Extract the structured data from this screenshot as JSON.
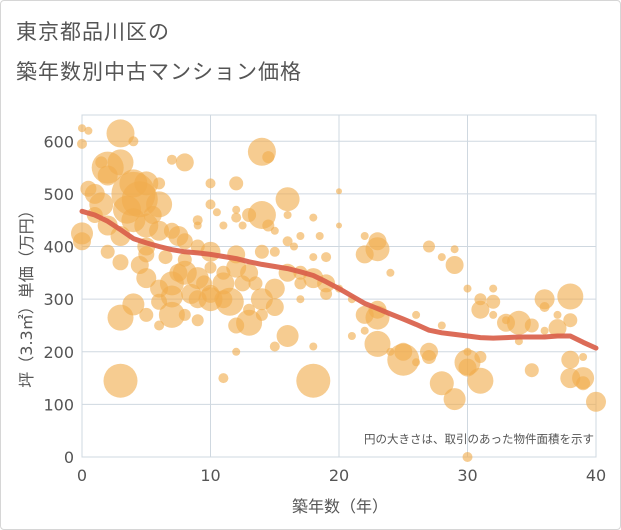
{
  "title_line1": "東京都品川区の",
  "title_line2": "築年数別中古マンション価格",
  "chart_data": {
    "type": "scatter",
    "xlabel": "築年数（年）",
    "ylabel": "坪（3.3㎡）単価（万円）",
    "xlim": [
      0,
      40
    ],
    "ylim": [
      0,
      650
    ],
    "xticks": [
      "0",
      "10",
      "20",
      "30",
      "40"
    ],
    "yticks": [
      "0",
      "100",
      "200",
      "300",
      "400",
      "500",
      "600"
    ],
    "grid": true,
    "note": "円の大きさは、取引のあった物件面積を示す",
    "colors": {
      "bubble": "#f0ad4e",
      "trend": "#d9604a"
    },
    "trend": {
      "x": [
        0,
        1,
        2,
        3,
        4,
        5,
        6,
        7,
        8,
        9,
        10,
        11,
        12,
        13,
        14,
        15,
        16,
        17,
        18,
        19,
        20,
        21,
        22,
        23,
        24,
        25,
        26,
        27,
        28,
        29,
        30,
        31,
        32,
        33,
        34,
        35,
        36,
        37,
        38,
        39,
        40
      ],
      "y": [
        467,
        460,
        448,
        432,
        415,
        407,
        400,
        394,
        390,
        388,
        385,
        381,
        377,
        371,
        366,
        362,
        358,
        352,
        345,
        333,
        320,
        306,
        292,
        282,
        272,
        262,
        252,
        241,
        236,
        233,
        230,
        227,
        226,
        227,
        228,
        228,
        228,
        230,
        230,
        218,
        207
      ]
    },
    "points": [
      [
        0,
        625,
        4
      ],
      [
        0,
        595,
        5
      ],
      [
        0.5,
        620,
        4
      ],
      [
        0,
        410,
        9
      ],
      [
        0,
        425,
        11
      ],
      [
        1,
        500,
        10
      ],
      [
        1.5,
        480,
        12
      ],
      [
        2,
        550,
        16
      ],
      [
        2,
        535,
        10
      ],
      [
        3,
        560,
        13
      ],
      [
        3,
        615,
        14
      ],
      [
        3.5,
        470,
        14
      ],
      [
        4,
        500,
        22
      ],
      [
        4,
        520,
        14
      ],
      [
        4.5,
        490,
        18
      ],
      [
        5,
        520,
        12
      ],
      [
        4,
        450,
        12
      ],
      [
        3,
        420,
        10
      ],
      [
        5,
        400,
        9
      ],
      [
        6,
        480,
        13
      ],
      [
        5.5,
        460,
        9
      ],
      [
        7,
        430,
        8
      ],
      [
        7.5,
        420,
        10
      ],
      [
        8,
        560,
        9
      ],
      [
        7,
        565,
        5
      ],
      [
        9,
        450,
        5
      ],
      [
        10,
        480,
        5
      ],
      [
        10.5,
        465,
        4
      ],
      [
        11,
        440,
        4
      ],
      [
        12,
        455,
        5
      ],
      [
        12.5,
        440,
        4
      ],
      [
        13,
        460,
        7
      ],
      [
        14,
        580,
        14
      ],
      [
        14.5,
        570,
        6
      ],
      [
        14,
        460,
        14
      ],
      [
        14.5,
        440,
        6
      ],
      [
        15,
        430,
        4
      ],
      [
        16,
        490,
        12
      ],
      [
        16,
        460,
        4
      ],
      [
        17,
        420,
        4
      ],
      [
        18,
        455,
        4
      ],
      [
        20,
        505,
        3
      ],
      [
        20,
        440,
        3
      ],
      [
        22,
        420,
        4
      ],
      [
        23,
        410,
        9
      ],
      [
        23,
        395,
        12
      ],
      [
        22,
        385,
        9
      ],
      [
        24,
        350,
        4
      ],
      [
        27,
        400,
        6
      ],
      [
        29,
        395,
        4
      ],
      [
        29,
        365,
        9
      ],
      [
        30,
        320,
        4
      ],
      [
        28,
        380,
        4
      ],
      [
        31,
        300,
        6
      ],
      [
        31,
        280,
        9
      ],
      [
        32,
        320,
        4
      ],
      [
        32,
        295,
        7
      ],
      [
        33,
        255,
        9
      ],
      [
        34,
        255,
        12
      ],
      [
        35,
        250,
        7
      ],
      [
        35,
        165,
        7
      ],
      [
        36,
        300,
        10
      ],
      [
        36,
        285,
        5
      ],
      [
        37,
        245,
        9
      ],
      [
        38,
        305,
        13
      ],
      [
        38,
        260,
        7
      ],
      [
        38,
        185,
        9
      ],
      [
        38,
        150,
        10
      ],
      [
        39,
        150,
        11
      ],
      [
        39,
        140,
        7
      ],
      [
        40,
        105,
        10
      ],
      [
        30,
        180,
        13
      ],
      [
        30,
        170,
        9
      ],
      [
        31,
        145,
        13
      ],
      [
        31,
        190,
        6
      ],
      [
        29,
        110,
        11
      ],
      [
        28,
        140,
        12
      ],
      [
        27,
        200,
        9
      ],
      [
        27,
        190,
        7
      ],
      [
        25,
        185,
        16
      ],
      [
        25,
        200,
        9
      ],
      [
        23,
        215,
        13
      ],
      [
        23,
        280,
        9
      ],
      [
        23,
        265,
        12
      ],
      [
        22,
        270,
        9
      ],
      [
        2,
        390,
        7
      ],
      [
        3,
        370,
        8
      ],
      [
        3,
        265,
        13
      ],
      [
        4,
        290,
        11
      ],
      [
        4.5,
        365,
        9
      ],
      [
        5,
        385,
        8
      ],
      [
        5,
        340,
        10
      ],
      [
        6,
        320,
        9
      ],
      [
        6,
        295,
        8
      ],
      [
        6.5,
        380,
        7
      ],
      [
        7,
        330,
        12
      ],
      [
        7,
        305,
        11
      ],
      [
        7,
        270,
        13
      ],
      [
        7.5,
        350,
        9
      ],
      [
        8,
        350,
        12
      ],
      [
        8,
        375,
        7
      ],
      [
        8.5,
        310,
        10
      ],
      [
        9,
        340,
        11
      ],
      [
        9,
        300,
        9
      ],
      [
        9.5,
        330,
        8
      ],
      [
        10,
        390,
        10
      ],
      [
        10,
        310,
        9
      ],
      [
        10,
        300,
        12
      ],
      [
        11,
        330,
        11
      ],
      [
        11,
        300,
        9
      ],
      [
        11.5,
        295,
        14
      ],
      [
        12,
        385,
        9
      ],
      [
        12,
        360,
        10
      ],
      [
        12,
        250,
        8
      ],
      [
        12.5,
        330,
        8
      ],
      [
        13,
        255,
        13
      ],
      [
        13,
        350,
        9
      ],
      [
        13.5,
        330,
        7
      ],
      [
        14,
        300,
        11
      ],
      [
        14,
        390,
        7
      ],
      [
        15,
        320,
        10
      ],
      [
        15,
        285,
        9
      ],
      [
        15,
        210,
        5
      ],
      [
        16,
        230,
        11
      ],
      [
        16,
        350,
        9
      ],
      [
        17,
        350,
        7
      ],
      [
        17,
        330,
        6
      ],
      [
        18,
        340,
        10
      ],
      [
        18,
        145,
        17
      ],
      [
        18,
        210,
        4
      ],
      [
        19,
        330,
        9
      ],
      [
        19,
        310,
        6
      ],
      [
        19,
        380,
        5
      ],
      [
        11,
        150,
        5
      ],
      [
        3,
        145,
        17
      ],
      [
        12,
        200,
        4
      ],
      [
        12,
        470,
        4
      ],
      [
        12,
        520,
        7
      ],
      [
        10,
        520,
        5
      ],
      [
        9,
        440,
        4
      ],
      [
        16.5,
        400,
        4
      ],
      [
        17,
        300,
        4
      ],
      [
        18.5,
        420,
        4
      ],
      [
        18,
        380,
        4
      ],
      [
        20,
        320,
        4
      ],
      [
        21,
        300,
        4
      ],
      [
        21,
        230,
        4
      ],
      [
        22,
        240,
        4
      ],
      [
        24,
        200,
        4
      ],
      [
        26,
        270,
        4
      ],
      [
        26,
        180,
        4
      ],
      [
        28,
        250,
        4
      ],
      [
        30,
        200,
        4
      ],
      [
        30,
        0,
        5
      ],
      [
        32,
        270,
        4
      ],
      [
        33,
        260,
        4
      ],
      [
        34,
        220,
        4
      ],
      [
        36,
        240,
        4
      ],
      [
        37,
        270,
        4
      ],
      [
        39,
        190,
        4
      ],
      [
        5,
        440,
        12
      ],
      [
        6,
        430,
        10
      ],
      [
        8,
        410,
        8
      ],
      [
        9,
        400,
        7
      ],
      [
        1,
        460,
        8
      ],
      [
        2,
        440,
        10
      ],
      [
        0.5,
        510,
        8
      ],
      [
        1.5,
        560,
        6
      ],
      [
        4,
        600,
        5
      ],
      [
        6,
        520,
        6
      ],
      [
        13,
        280,
        6
      ],
      [
        14,
        270,
        6
      ],
      [
        15,
        390,
        5
      ],
      [
        16,
        410,
        5
      ],
      [
        10,
        360,
        6
      ],
      [
        11,
        350,
        7
      ],
      [
        8,
        270,
        6
      ],
      [
        9,
        260,
        6
      ],
      [
        5,
        270,
        7
      ],
      [
        6,
        250,
        5
      ]
    ]
  }
}
